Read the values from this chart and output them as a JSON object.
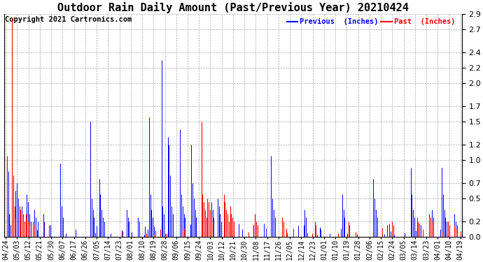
{
  "title": "Outdoor Rain Daily Amount (Past/Previous Year) 20210424",
  "copyright": "Copyright 2021 Cartronics.com",
  "legend_previous": "Previous  (Inches)",
  "legend_past": "Past  (Inches)",
  "previous_color": "blue",
  "past_color": "red",
  "background_color": "#ffffff",
  "grid_color": "#aaaaaa",
  "ylim": [
    0.0,
    2.9
  ],
  "yticks": [
    0.0,
    0.2,
    0.5,
    0.7,
    1.0,
    1.2,
    1.5,
    1.7,
    2.0,
    2.2,
    2.4,
    2.7,
    2.9
  ],
  "x_labels": [
    "04/24",
    "05/03",
    "05/12",
    "05/21",
    "05/30",
    "06/07",
    "06/17",
    "06/26",
    "07/05",
    "07/14",
    "07/23",
    "08/01",
    "08/10",
    "08/19",
    "08/28",
    "09/06",
    "09/15",
    "09/24",
    "10/03",
    "10/12",
    "10/21",
    "10/30",
    "11/08",
    "11/17",
    "11/26",
    "12/05",
    "12/14",
    "12/23",
    "01/01",
    "01/10",
    "01/19",
    "01/28",
    "02/06",
    "02/15",
    "02/24",
    "03/05",
    "03/14",
    "03/23",
    "04/01",
    "04/10",
    "04/19"
  ],
  "n_points": 366,
  "title_fontsize": 11,
  "label_fontsize": 7,
  "copyright_fontsize": 7.5,
  "ytick_fontsize": 8
}
